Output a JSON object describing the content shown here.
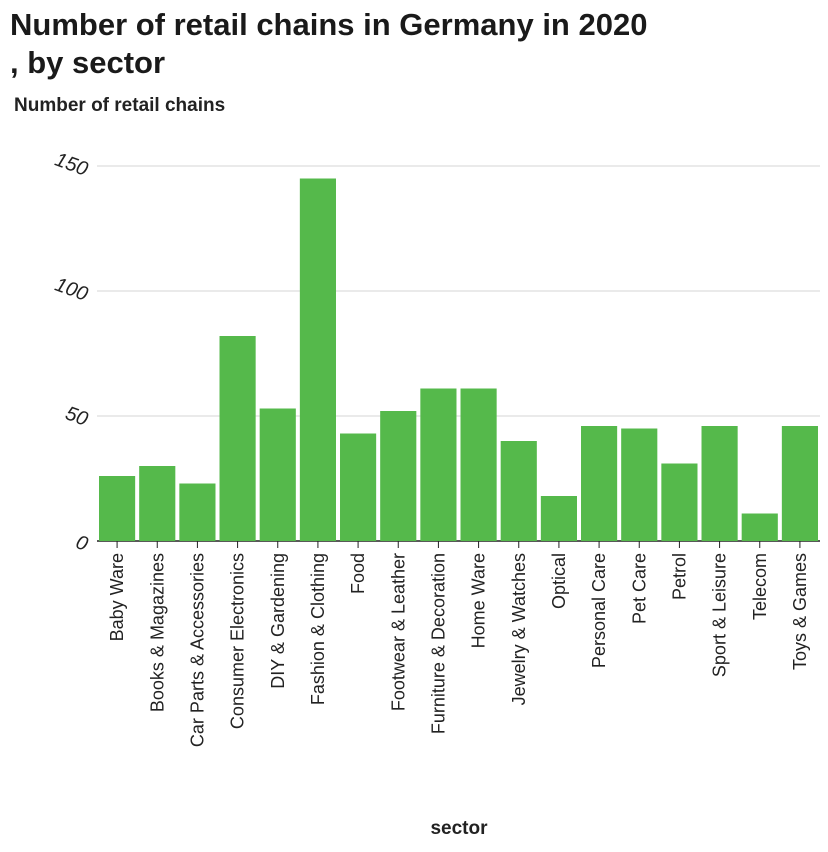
{
  "chart_data": {
    "type": "bar",
    "title": "Number of retail chains in Germany in 2020 , by sector",
    "title_lines": [
      "Number of retail chains in Germany in 2020",
      ", by sector"
    ],
    "xlabel": "sector",
    "ylabel": "Number of retail chains",
    "ylim": [
      0,
      150
    ],
    "yticks": [
      0,
      50,
      100,
      150
    ],
    "grid": true,
    "bar_color": "#55b94b",
    "categories": [
      "Baby Ware",
      "Books & Magazines",
      "Car Parts & Accessories",
      "Consumer Electronics",
      "DIY & Gardening",
      "Fashion & Clothing",
      "Food",
      "Footwear & Leather",
      "Furniture & Decoration",
      "Home Ware",
      "Jewelry & Watches",
      "Optical",
      "Personal Care",
      "Pet Care",
      "Petrol",
      "Sport & Leisure",
      "Telecom",
      "Toys & Games"
    ],
    "values": [
      26,
      30,
      23,
      82,
      53,
      145,
      43,
      52,
      61,
      61,
      40,
      18,
      46,
      45,
      31,
      46,
      11,
      46
    ]
  }
}
